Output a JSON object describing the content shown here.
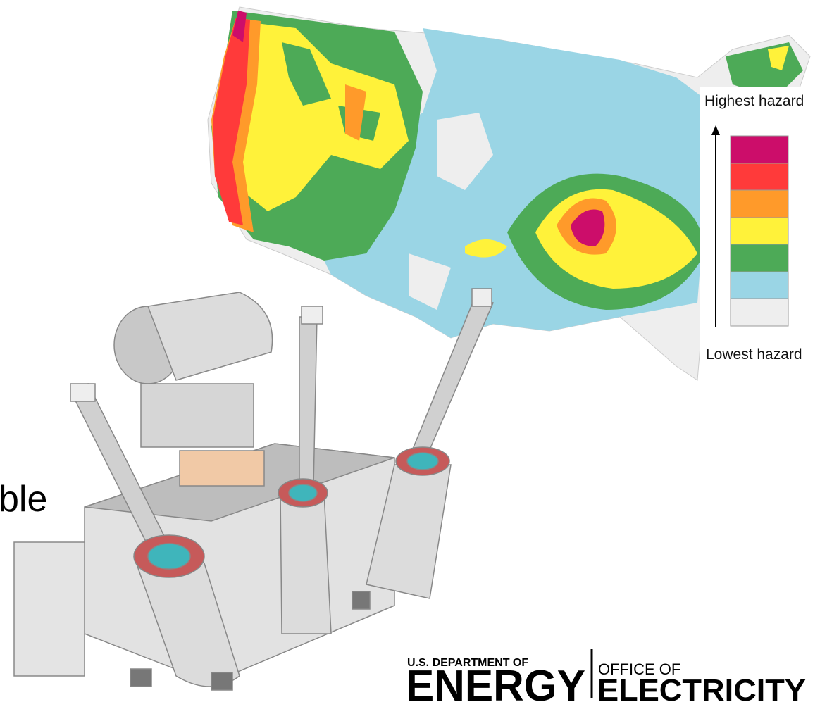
{
  "legend": {
    "top_label": "Highest hazard",
    "bottom_label": "Lowest hazard"
  },
  "text_fragment": "ble",
  "logo": {
    "department": "U.S. DEPARTMENT OF",
    "agency": "ENERGY",
    "office_prefix": "OFFICE OF",
    "office": "ELECTRICITY"
  }
}
